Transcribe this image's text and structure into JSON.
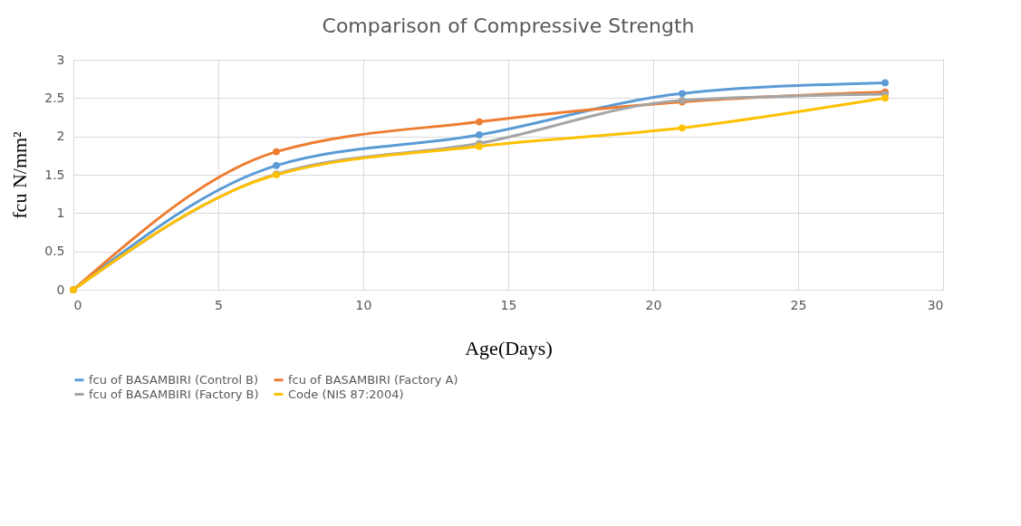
{
  "chart_data": {
    "type": "line",
    "title": "Comparison of Compressive Strength",
    "xlabel": "Age(Days)",
    "ylabel": "fcu N/mm²",
    "x": [
      0,
      7,
      14,
      21,
      28
    ],
    "series": [
      {
        "name": "fcu of BASAMBIRI (Control B)",
        "color": "#5b9bd5",
        "values": [
          0,
          1.62,
          2.02,
          2.56,
          2.7
        ]
      },
      {
        "name": "fcu of BASAMBIRI (Factory A)",
        "color": "#ed7d31",
        "values": [
          0,
          1.8,
          2.19,
          2.45,
          2.58
        ]
      },
      {
        "name": "fcu of BASAMBIRI (Factory B)",
        "color": "#a5a5a5",
        "values": [
          0,
          1.51,
          1.91,
          2.47,
          2.55
        ]
      },
      {
        "name": "Code (NIS 87:2004)",
        "color": "#ffc000",
        "values": [
          0,
          1.5,
          1.87,
          2.11,
          2.5
        ]
      }
    ],
    "xlim": [
      0,
      30
    ],
    "xticks": [
      0,
      5,
      10,
      15,
      20,
      25,
      30
    ],
    "ylim": [
      0,
      3
    ],
    "yticks": [
      0,
      0.5,
      1,
      1.5,
      2,
      2.5,
      3
    ],
    "grid": true,
    "legend": "bottom",
    "marker": "circle",
    "line_style": "solid"
  }
}
